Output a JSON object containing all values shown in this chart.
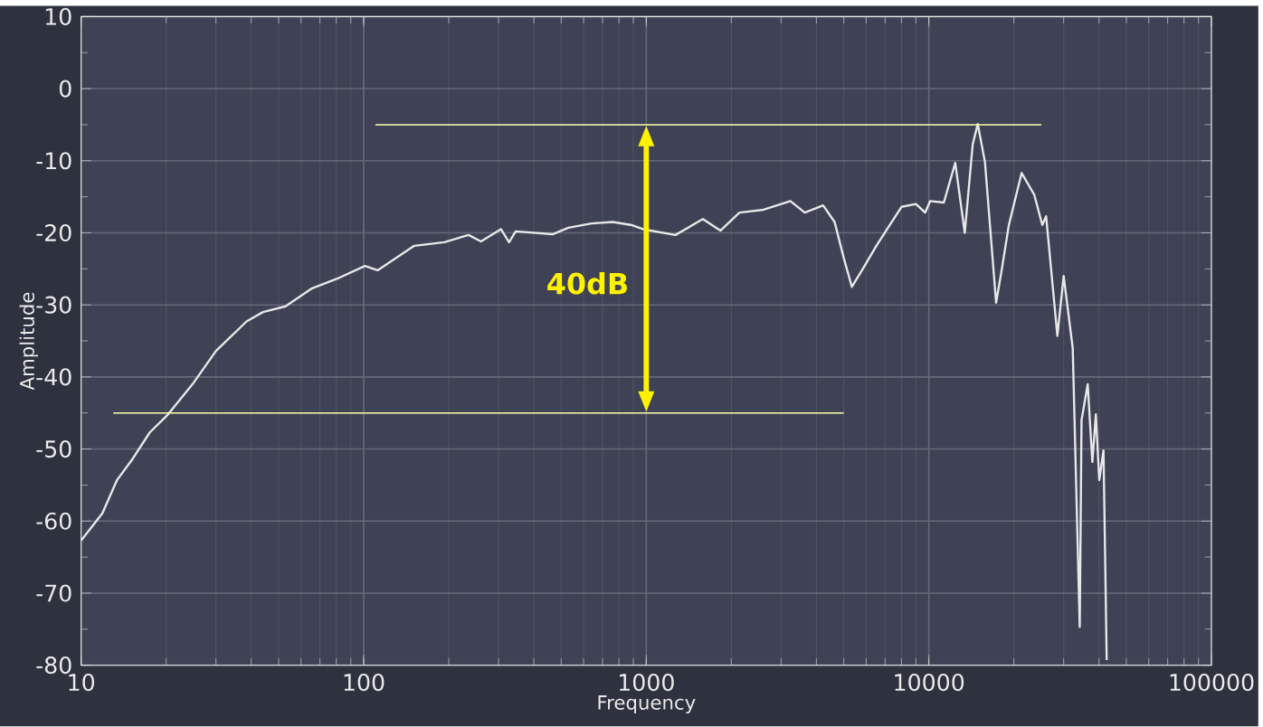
{
  "chart_data": {
    "type": "line",
    "xlabel": "Frequency",
    "ylabel": "Amplitude",
    "log": "x",
    "grid": true,
    "marker": "none",
    "xlim": [
      10,
      100000
    ],
    "ylim": [
      -80,
      10
    ],
    "xticks": [
      10,
      100,
      1000,
      10000,
      100000
    ],
    "yticks": [
      -80,
      -70,
      -60,
      -50,
      -40,
      -30,
      -20,
      -10,
      0,
      10
    ],
    "annotations": [
      "40dB"
    ],
    "series": [
      {
        "color": "#e8e8e8",
        "x": [
          10,
          11.9,
          13.4,
          15.2,
          17.5,
          20.3,
          24.8,
          30,
          38.5,
          44,
          52.9,
          65.7,
          80.2,
          101,
          112,
          151,
          193,
          235,
          260,
          306,
          327,
          345,
          466,
          530,
          640,
          760,
          882,
          974,
          1268,
          1586,
          1830,
          2136,
          2600,
          3235,
          3640,
          4226,
          4640,
          5000,
          5340,
          5800,
          6520,
          8000,
          9000,
          9700,
          10100,
          11300,
          12400,
          13400,
          14300,
          14900,
          15800,
          17300,
          18100,
          19200,
          21300,
          23600,
          25200,
          26000,
          28500,
          30000,
          32300,
          34200,
          34700,
          36500,
          37900,
          39000,
          40100,
          41500,
          42600
        ],
        "values": [
          -62.7,
          -58.9,
          -54.3,
          -51.4,
          -47.7,
          -45.2,
          -41,
          -36.4,
          -32.3,
          -31,
          -30.2,
          -27.7,
          -26.4,
          -24.6,
          -25.2,
          -21.8,
          -21.3,
          -20.3,
          -21.2,
          -19.5,
          -21.3,
          -19.8,
          -20.2,
          -19.3,
          -18.7,
          -18.5,
          -18.9,
          -19.5,
          -20.3,
          -18.1,
          -19.7,
          -17.2,
          -16.8,
          -15.6,
          -17.2,
          -16.2,
          -18.5,
          -23.5,
          -27.5,
          -25.2,
          -21.8,
          -16.4,
          -16,
          -17.2,
          -15.6,
          -15.8,
          -10.3,
          -20,
          -7.7,
          -4.9,
          -10.2,
          -29.7,
          -25.2,
          -18.9,
          -11.7,
          -14.7,
          -18.9,
          -17.7,
          -34.3,
          -26,
          -36,
          -74.7,
          -46,
          -41,
          -51.8,
          -45.2,
          -54.3,
          -50.2,
          -79.3
        ]
      },
      {
        "type": "line",
        "color": "#ffffa8",
        "x": [
          110,
          25000
        ],
        "values": [
          -5,
          -5
        ]
      },
      {
        "type": "line",
        "color": "#ffffa8",
        "x": [
          13,
          5000
        ],
        "values": [
          -45,
          -45
        ]
      }
    ]
  }
}
